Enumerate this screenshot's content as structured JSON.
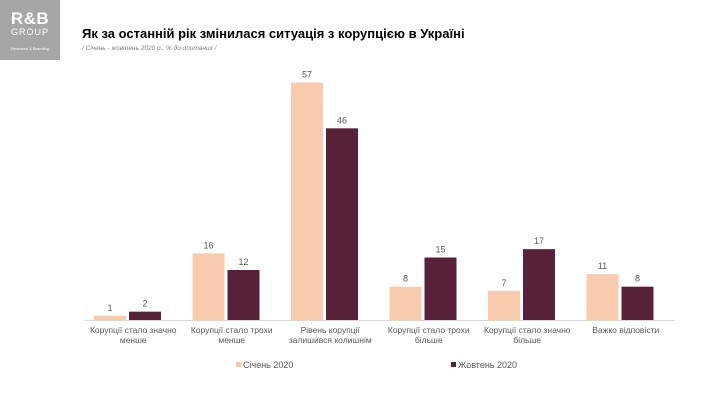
{
  "logo": {
    "main": "R&B",
    "sub": "GROUP",
    "tag": "Research & Branding"
  },
  "title": "Як за останній рік змінилася ситуація з корупцією в Україні",
  "subtitle": "/ Січень - жовтень 2020 р., % до опитаних /",
  "colors": {
    "series1": "#f8cbad",
    "series2": "#57213a",
    "text": "#595959",
    "axis": "#d9d9d9"
  },
  "chart_data": {
    "type": "bar",
    "title": "Як за останній рік змінилася ситуація з корупцією в Україні",
    "xlabel": "",
    "ylabel": "",
    "ylim": [
      0,
      60
    ],
    "grid": false,
    "legend": "bottom",
    "categories": [
      [
        "Корупції стало значно",
        "менше"
      ],
      [
        "Корупції стало трохи",
        "менше"
      ],
      [
        "Рівень корупції",
        "залишився колишнім"
      ],
      [
        "Корупції стало трохи",
        "більше"
      ],
      [
        "Корупції стало значно",
        "більше"
      ],
      [
        "Важко відповісти"
      ]
    ],
    "series": [
      {
        "name": "Січень 2020",
        "color": "#f8cbad",
        "values": [
          1,
          16,
          57,
          8,
          7,
          11
        ]
      },
      {
        "name": "Жовтень 2020",
        "color": "#57213a",
        "values": [
          2,
          12,
          46,
          15,
          17,
          8
        ]
      }
    ]
  }
}
